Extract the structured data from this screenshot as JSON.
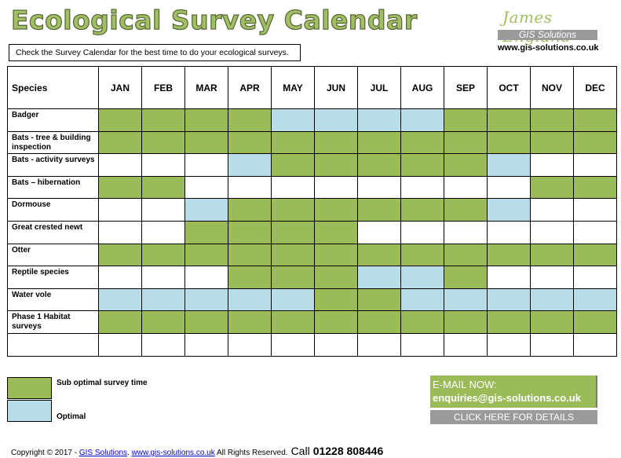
{
  "header": {
    "title": "Ecological Survey Calendar",
    "subtitle": "Check the Survey Calendar for the best time to do your ecological surveys."
  },
  "brand": {
    "signature": "James England",
    "bar_text": "GIS Solutions",
    "url": "www.gis-solutions.co.uk"
  },
  "table": {
    "species_header": "Species",
    "months": [
      "JAN",
      "FEB",
      "MAR",
      "APR",
      "MAY",
      "JUN",
      "JUL",
      "AUG",
      "SEP",
      "OCT",
      "NOV",
      "DEC"
    ],
    "rows": [
      {
        "species": "Badger",
        "cells": [
          "g",
          "g",
          "g",
          "g",
          "b",
          "b",
          "b",
          "b",
          "g",
          "g",
          "g",
          "g"
        ]
      },
      {
        "species": "Bats - tree & building inspection",
        "cells": [
          "g",
          "g",
          "g",
          "g",
          "g",
          "g",
          "g",
          "g",
          "g",
          "g",
          "g",
          "g"
        ]
      },
      {
        "species": "Bats - activity surveys",
        "cells": [
          "w",
          "w",
          "w",
          "b",
          "g",
          "g",
          "g",
          "g",
          "g",
          "b",
          "w",
          "w"
        ]
      },
      {
        "species": "Bats – hibernation",
        "cells": [
          "g",
          "g",
          "w",
          "w",
          "w",
          "w",
          "w",
          "w",
          "w",
          "w",
          "g",
          "g"
        ]
      },
      {
        "species": "Dormouse",
        "cells": [
          "w",
          "w",
          "b",
          "g",
          "g",
          "g",
          "g",
          "g",
          "g",
          "b",
          "w",
          "w"
        ]
      },
      {
        "species": "Great crested newt",
        "cells": [
          "w",
          "w",
          "g",
          "g",
          "g",
          "g",
          "w",
          "w",
          "w",
          "w",
          "w",
          "w"
        ]
      },
      {
        "species": "Otter",
        "cells": [
          "g",
          "g",
          "g",
          "g",
          "g",
          "g",
          "g",
          "g",
          "g",
          "g",
          "g",
          "g"
        ]
      },
      {
        "species": "Reptile species",
        "cells": [
          "w",
          "w",
          "w",
          "g",
          "g",
          "g",
          "b",
          "b",
          "g",
          "w",
          "w",
          "w"
        ]
      },
      {
        "species": "Water vole",
        "cells": [
          "b",
          "b",
          "b",
          "b",
          "b",
          "g",
          "g",
          "b",
          "b",
          "b",
          "b",
          "b"
        ]
      },
      {
        "species": "Phase 1 Habitat surveys",
        "cells": [
          "g",
          "g",
          "g",
          "g",
          "g",
          "g",
          "g",
          "g",
          "g",
          "g",
          "g",
          "g"
        ]
      },
      {
        "species": "",
        "cells": [
          "w",
          "w",
          "w",
          "w",
          "w",
          "w",
          "w",
          "w",
          "w",
          "w",
          "w",
          "w"
        ]
      }
    ]
  },
  "legend": {
    "sub_optimal_label": "Sub optimal survey time",
    "sub_optimal_color": "#9bbb59",
    "optimal_label": "Optimal",
    "optimal_color": "#b7dee8"
  },
  "contact": {
    "email_title": "E-MAIL NOW:",
    "email_address": "enquiries@gis-solutions.co.uk",
    "details_button": "CLICK HERE FOR DETAILS"
  },
  "footer": {
    "copyright": "Copyright © 2017 - ",
    "link1": "GIS Solutions",
    "separator": ". ",
    "link2": "www.gis-solutions.co.uk",
    "rights": " All Rights Reserved.",
    "call": "Call",
    "phone": "01228 808446"
  }
}
